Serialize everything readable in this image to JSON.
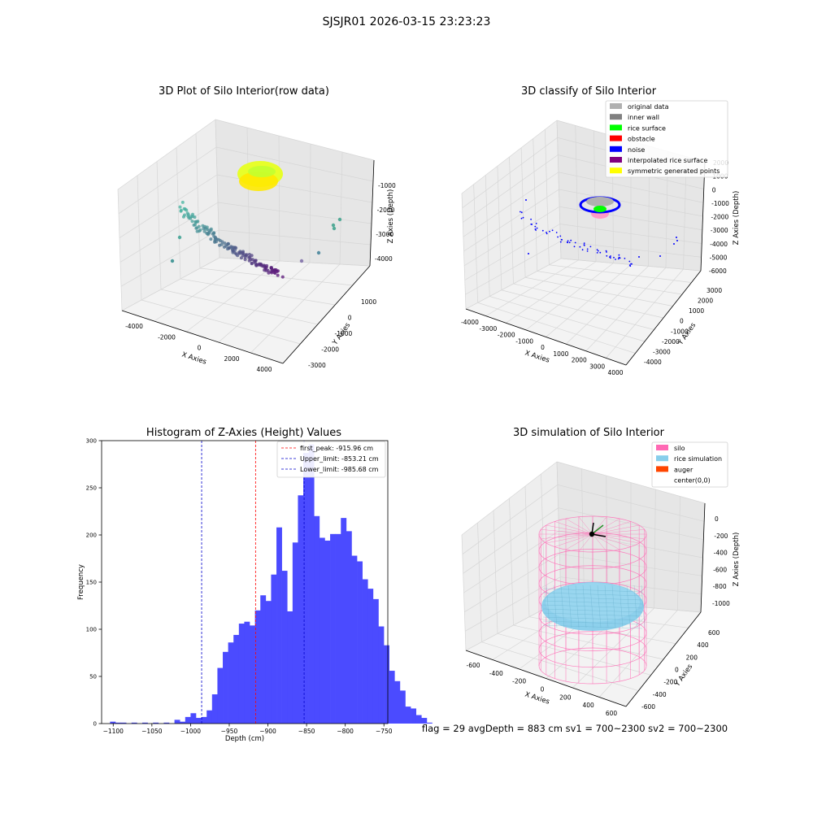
{
  "figure": {
    "suptitle": "SJSJR01 2026-03-15 23:23:23",
    "status_text": "flag = 29  avgDepth = 883 cm  sv1 = 700~2300  sv2 = 700~2300"
  },
  "colors": {
    "hist_bar": "#4b4bff",
    "first_peak_line": "#ff0000",
    "limit_lines": "#0000cc",
    "original_data": "#b0b0b0",
    "inner_wall": "#808080",
    "rice_surface": "#00ff00",
    "obstacle": "#ff0000",
    "noise": "#0000ff",
    "interpolated_rice_surface": "#800080",
    "symmetric_generated_points": "#ffff00",
    "silo": "#ff69b4",
    "rice_simulation": "#87ceeb",
    "auger": "#ff4500"
  },
  "panels": {
    "raw": {
      "title": "3D Plot of Silo Interior(row data)",
      "xlabel": "X Axies",
      "ylabel": "Y Axies",
      "zlabel": "Z Axies (Depth)",
      "xticks": [
        "-4000",
        "-2000",
        "0",
        "2000",
        "4000"
      ],
      "yticks": [
        "1000",
        "0",
        "-1000",
        "-2000",
        "-3000"
      ],
      "zticks": [
        "-1000",
        "-2000",
        "-3000",
        "-4000"
      ]
    },
    "classify": {
      "title": "3D classify of Silo Interior",
      "xlabel": "X Axies",
      "ylabel": "Y Axies",
      "zlabel": "Z Axies (Depth)",
      "xticks": [
        "-4000",
        "-3000",
        "-2000",
        "-1000",
        "0",
        "1000",
        "2000",
        "3000",
        "4000"
      ],
      "yticks": [
        "3000",
        "2000",
        "1000",
        "0",
        "-1000",
        "-2000",
        "-3000",
        "-4000"
      ],
      "zticks": [
        "2000",
        "1000",
        "0",
        "-1000",
        "-2000",
        "-3000",
        "-4000",
        "-5000",
        "-6000"
      ],
      "legend": [
        {
          "label": "original data",
          "color": "#b0b0b0"
        },
        {
          "label": "inner wall",
          "color": "#808080"
        },
        {
          "label": "rice surface",
          "color": "#00ff00"
        },
        {
          "label": "obstacle",
          "color": "#ff0000"
        },
        {
          "label": "noise",
          "color": "#0000ff"
        },
        {
          "label": "interpolated rice surface",
          "color": "#800080"
        },
        {
          "label": "symmetric generated points",
          "color": "#ffff00"
        }
      ]
    },
    "simulation": {
      "title": "3D simulation of Silo Interior",
      "xlabel": "X Axies",
      "ylabel": "Y Axies",
      "zlabel": "Z Axies (Depth)",
      "xticks": [
        "-600",
        "-400",
        "-200",
        "0",
        "200",
        "400",
        "600"
      ],
      "yticks": [
        "600",
        "400",
        "200",
        "0",
        "-200",
        "-400",
        "-600"
      ],
      "zticks": [
        "0",
        "-200",
        "-400",
        "-600",
        "-800",
        "-1000"
      ],
      "legend": [
        {
          "label": "silo",
          "color": "#ff69b4"
        },
        {
          "label": "rice simulation",
          "color": "#87ceeb"
        },
        {
          "label": "auger",
          "color": "#ff4500"
        },
        {
          "label": "center(0,0)",
          "color": ""
        }
      ]
    }
  },
  "chart_data": {
    "type": "bar",
    "title": "Histogram of Z-Axies (Height) Values",
    "xlabel": "Depth (cm)",
    "ylabel": "Frequency",
    "xlim": [
      -1115,
      -745
    ],
    "ylim": [
      0,
      300
    ],
    "xticks": [
      -1100,
      -1050,
      -1000,
      -950,
      -900,
      -850,
      -800,
      -750
    ],
    "yticks": [
      0,
      50,
      100,
      150,
      200,
      250,
      300
    ],
    "bin_start": -1104.1,
    "bin_width": 6.94,
    "values": [
      2,
      1,
      1,
      0,
      1,
      0,
      1,
      0,
      1,
      0,
      1,
      0,
      4,
      2,
      7,
      11,
      6,
      7,
      14,
      31,
      59,
      76,
      86,
      94,
      106,
      108,
      104,
      120,
      136,
      130,
      158,
      208,
      162,
      119,
      192,
      242,
      287,
      296,
      220,
      197,
      194,
      201,
      201,
      218,
      204,
      178,
      172,
      153,
      143,
      132,
      103,
      83,
      56,
      45,
      35,
      18,
      16,
      9,
      6,
      1
    ],
    "reference_lines": [
      {
        "label": "first_peak: -915.96 cm",
        "x": -915.96,
        "color": "#ff0000"
      },
      {
        "label": "Upper_limit: -853.21 cm",
        "x": -853.21,
        "color": "#0000cc"
      },
      {
        "label": "Lower_limit: -985.68 cm",
        "x": -985.68,
        "color": "#0000cc"
      }
    ]
  }
}
